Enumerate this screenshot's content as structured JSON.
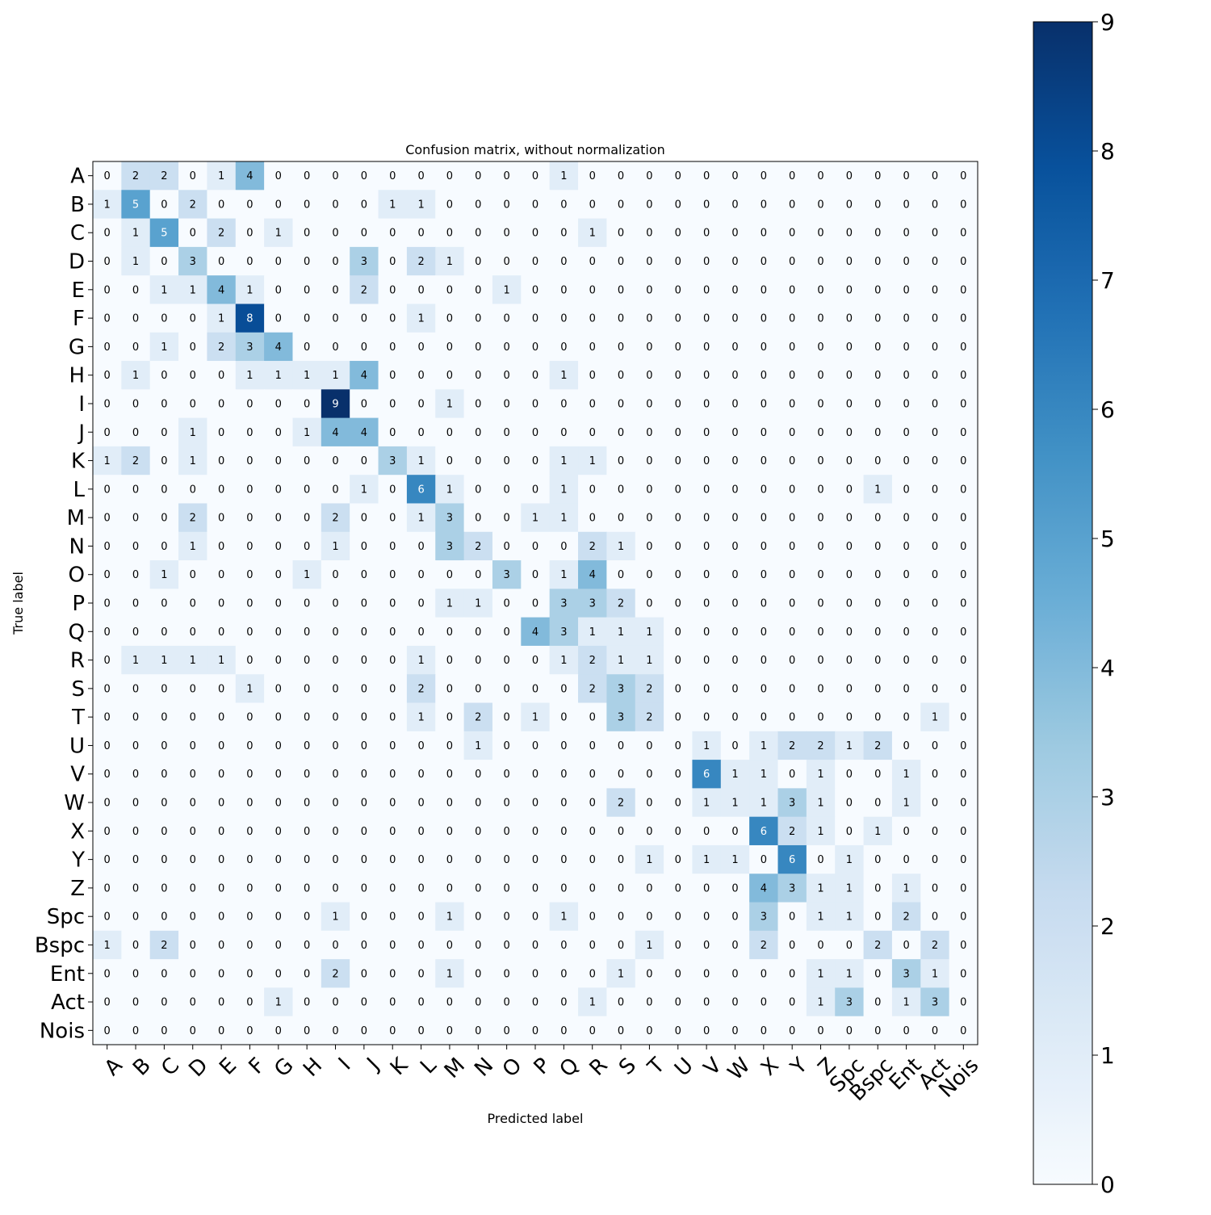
{
  "chart_data": {
    "type": "heatmap",
    "title": "Confusion matrix, without normalization",
    "xlabel": "Predicted label",
    "ylabel": "True label",
    "labels": [
      "A",
      "B",
      "C",
      "D",
      "E",
      "F",
      "G",
      "H",
      "I",
      "J",
      "K",
      "L",
      "M",
      "N",
      "O",
      "P",
      "Q",
      "R",
      "S",
      "T",
      "U",
      "V",
      "W",
      "X",
      "Y",
      "Z",
      "Spc",
      "Bspc",
      "Ent",
      "Act",
      "Nois"
    ],
    "matrix": [
      [
        0,
        2,
        2,
        0,
        1,
        4,
        0,
        0,
        0,
        0,
        0,
        0,
        0,
        0,
        0,
        0,
        1,
        0,
        0,
        0,
        0,
        0,
        0,
        0,
        0,
        0,
        0,
        0,
        0,
        0,
        0
      ],
      [
        1,
        5,
        0,
        2,
        0,
        0,
        0,
        0,
        0,
        0,
        1,
        1,
        0,
        0,
        0,
        0,
        0,
        0,
        0,
        0,
        0,
        0,
        0,
        0,
        0,
        0,
        0,
        0,
        0,
        0,
        0
      ],
      [
        0,
        1,
        5,
        0,
        2,
        0,
        1,
        0,
        0,
        0,
        0,
        0,
        0,
        0,
        0,
        0,
        0,
        1,
        0,
        0,
        0,
        0,
        0,
        0,
        0,
        0,
        0,
        0,
        0,
        0,
        0
      ],
      [
        0,
        1,
        0,
        3,
        0,
        0,
        0,
        0,
        0,
        3,
        0,
        2,
        1,
        0,
        0,
        0,
        0,
        0,
        0,
        0,
        0,
        0,
        0,
        0,
        0,
        0,
        0,
        0,
        0,
        0,
        0
      ],
      [
        0,
        0,
        1,
        1,
        4,
        1,
        0,
        0,
        0,
        2,
        0,
        0,
        0,
        0,
        1,
        0,
        0,
        0,
        0,
        0,
        0,
        0,
        0,
        0,
        0,
        0,
        0,
        0,
        0,
        0,
        0
      ],
      [
        0,
        0,
        0,
        0,
        1,
        8,
        0,
        0,
        0,
        0,
        0,
        1,
        0,
        0,
        0,
        0,
        0,
        0,
        0,
        0,
        0,
        0,
        0,
        0,
        0,
        0,
        0,
        0,
        0,
        0,
        0
      ],
      [
        0,
        0,
        1,
        0,
        2,
        3,
        4,
        0,
        0,
        0,
        0,
        0,
        0,
        0,
        0,
        0,
        0,
        0,
        0,
        0,
        0,
        0,
        0,
        0,
        0,
        0,
        0,
        0,
        0,
        0,
        0
      ],
      [
        0,
        1,
        0,
        0,
        0,
        1,
        1,
        1,
        1,
        4,
        0,
        0,
        0,
        0,
        0,
        0,
        1,
        0,
        0,
        0,
        0,
        0,
        0,
        0,
        0,
        0,
        0,
        0,
        0,
        0,
        0
      ],
      [
        0,
        0,
        0,
        0,
        0,
        0,
        0,
        0,
        9,
        0,
        0,
        0,
        1,
        0,
        0,
        0,
        0,
        0,
        0,
        0,
        0,
        0,
        0,
        0,
        0,
        0,
        0,
        0,
        0,
        0,
        0
      ],
      [
        0,
        0,
        0,
        1,
        0,
        0,
        0,
        1,
        4,
        4,
        0,
        0,
        0,
        0,
        0,
        0,
        0,
        0,
        0,
        0,
        0,
        0,
        0,
        0,
        0,
        0,
        0,
        0,
        0,
        0,
        0
      ],
      [
        1,
        2,
        0,
        1,
        0,
        0,
        0,
        0,
        0,
        0,
        3,
        1,
        0,
        0,
        0,
        0,
        1,
        1,
        0,
        0,
        0,
        0,
        0,
        0,
        0,
        0,
        0,
        0,
        0,
        0,
        0
      ],
      [
        0,
        0,
        0,
        0,
        0,
        0,
        0,
        0,
        0,
        1,
        0,
        6,
        1,
        0,
        0,
        0,
        1,
        0,
        0,
        0,
        0,
        0,
        0,
        0,
        0,
        0,
        0,
        1,
        0,
        0,
        0
      ],
      [
        0,
        0,
        0,
        2,
        0,
        0,
        0,
        0,
        2,
        0,
        0,
        1,
        3,
        0,
        0,
        1,
        1,
        0,
        0,
        0,
        0,
        0,
        0,
        0,
        0,
        0,
        0,
        0,
        0,
        0,
        0
      ],
      [
        0,
        0,
        0,
        1,
        0,
        0,
        0,
        0,
        1,
        0,
        0,
        0,
        3,
        2,
        0,
        0,
        0,
        2,
        1,
        0,
        0,
        0,
        0,
        0,
        0,
        0,
        0,
        0,
        0,
        0,
        0
      ],
      [
        0,
        0,
        1,
        0,
        0,
        0,
        0,
        1,
        0,
        0,
        0,
        0,
        0,
        0,
        3,
        0,
        1,
        4,
        0,
        0,
        0,
        0,
        0,
        0,
        0,
        0,
        0,
        0,
        0,
        0,
        0
      ],
      [
        0,
        0,
        0,
        0,
        0,
        0,
        0,
        0,
        0,
        0,
        0,
        0,
        1,
        1,
        0,
        0,
        3,
        3,
        2,
        0,
        0,
        0,
        0,
        0,
        0,
        0,
        0,
        0,
        0,
        0,
        0
      ],
      [
        0,
        0,
        0,
        0,
        0,
        0,
        0,
        0,
        0,
        0,
        0,
        0,
        0,
        0,
        0,
        4,
        3,
        1,
        1,
        1,
        0,
        0,
        0,
        0,
        0,
        0,
        0,
        0,
        0,
        0,
        0
      ],
      [
        0,
        1,
        1,
        1,
        1,
        0,
        0,
        0,
        0,
        0,
        0,
        1,
        0,
        0,
        0,
        0,
        1,
        2,
        1,
        1,
        0,
        0,
        0,
        0,
        0,
        0,
        0,
        0,
        0,
        0,
        0
      ],
      [
        0,
        0,
        0,
        0,
        0,
        1,
        0,
        0,
        0,
        0,
        0,
        2,
        0,
        0,
        0,
        0,
        0,
        2,
        3,
        2,
        0,
        0,
        0,
        0,
        0,
        0,
        0,
        0,
        0,
        0,
        0
      ],
      [
        0,
        0,
        0,
        0,
        0,
        0,
        0,
        0,
        0,
        0,
        0,
        1,
        0,
        2,
        0,
        1,
        0,
        0,
        3,
        2,
        0,
        0,
        0,
        0,
        0,
        0,
        0,
        0,
        0,
        1,
        0
      ],
      [
        0,
        0,
        0,
        0,
        0,
        0,
        0,
        0,
        0,
        0,
        0,
        0,
        0,
        1,
        0,
        0,
        0,
        0,
        0,
        0,
        0,
        1,
        0,
        1,
        2,
        2,
        1,
        2,
        0,
        0,
        0
      ],
      [
        0,
        0,
        0,
        0,
        0,
        0,
        0,
        0,
        0,
        0,
        0,
        0,
        0,
        0,
        0,
        0,
        0,
        0,
        0,
        0,
        0,
        6,
        1,
        1,
        0,
        1,
        0,
        0,
        1,
        0,
        0
      ],
      [
        0,
        0,
        0,
        0,
        0,
        0,
        0,
        0,
        0,
        0,
        0,
        0,
        0,
        0,
        0,
        0,
        0,
        0,
        2,
        0,
        0,
        1,
        1,
        1,
        3,
        1,
        0,
        0,
        1,
        0,
        0
      ],
      [
        0,
        0,
        0,
        0,
        0,
        0,
        0,
        0,
        0,
        0,
        0,
        0,
        0,
        0,
        0,
        0,
        0,
        0,
        0,
        0,
        0,
        0,
        0,
        6,
        2,
        1,
        0,
        1,
        0,
        0,
        0
      ],
      [
        0,
        0,
        0,
        0,
        0,
        0,
        0,
        0,
        0,
        0,
        0,
        0,
        0,
        0,
        0,
        0,
        0,
        0,
        0,
        1,
        0,
        1,
        1,
        0,
        6,
        0,
        1,
        0,
        0,
        0,
        0
      ],
      [
        0,
        0,
        0,
        0,
        0,
        0,
        0,
        0,
        0,
        0,
        0,
        0,
        0,
        0,
        0,
        0,
        0,
        0,
        0,
        0,
        0,
        0,
        0,
        4,
        3,
        1,
        1,
        0,
        1,
        0,
        0
      ],
      [
        0,
        0,
        0,
        0,
        0,
        0,
        0,
        0,
        1,
        0,
        0,
        0,
        1,
        0,
        0,
        0,
        1,
        0,
        0,
        0,
        0,
        0,
        0,
        3,
        0,
        1,
        1,
        0,
        2,
        0,
        0
      ],
      [
        1,
        0,
        2,
        0,
        0,
        0,
        0,
        0,
        0,
        0,
        0,
        0,
        0,
        0,
        0,
        0,
        0,
        0,
        0,
        1,
        0,
        0,
        0,
        2,
        0,
        0,
        0,
        2,
        0,
        2,
        0
      ],
      [
        0,
        0,
        0,
        0,
        0,
        0,
        0,
        0,
        2,
        0,
        0,
        0,
        1,
        0,
        0,
        0,
        0,
        0,
        1,
        0,
        0,
        0,
        0,
        0,
        0,
        1,
        1,
        0,
        3,
        1,
        0
      ],
      [
        0,
        0,
        0,
        0,
        0,
        0,
        1,
        0,
        0,
        0,
        0,
        0,
        0,
        0,
        0,
        0,
        0,
        1,
        0,
        0,
        0,
        0,
        0,
        0,
        0,
        1,
        3,
        0,
        1,
        3,
        0
      ],
      [
        0,
        0,
        0,
        0,
        0,
        0,
        0,
        0,
        0,
        0,
        0,
        0,
        0,
        0,
        0,
        0,
        0,
        0,
        0,
        0,
        0,
        0,
        0,
        0,
        0,
        0,
        0,
        0,
        0,
        0,
        0
      ]
    ],
    "vmin": 0,
    "vmax": 9,
    "colormap": [
      "#f7fbff",
      "#deebf7",
      "#c6dbef",
      "#9ecae1",
      "#6baed6",
      "#4292c6",
      "#2171b5",
      "#08519c",
      "#08306b"
    ],
    "colorbar": {
      "ticks": [
        "0",
        "1",
        "2",
        "3",
        "4",
        "5",
        "6",
        "7",
        "8",
        "9"
      ]
    },
    "grid": false
  }
}
